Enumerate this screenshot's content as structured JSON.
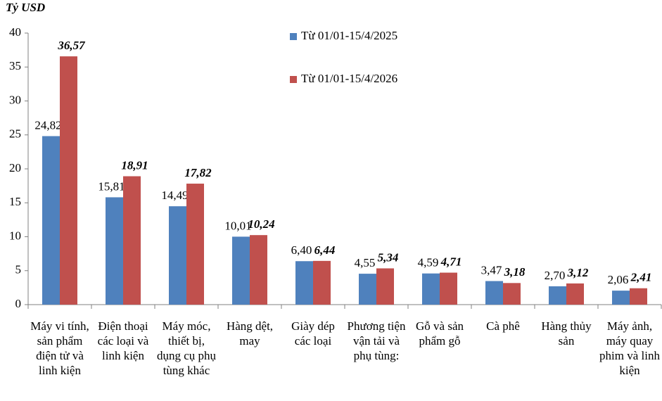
{
  "chart_data": {
    "type": "bar",
    "y_label": "Tỷ USD",
    "categories": [
      "Máy vi tính, sản phẩm điện tử và linh kiện",
      "Điện thoại các loại và linh kiện",
      "Máy móc, thiết bị, dụng cụ phụ tùng khác",
      "Hàng dệt, may",
      "Giày dép các loại",
      "Phương tiện vận tải và phụ tùng:",
      "Gỗ và sản phẩm gỗ",
      "Cà phê",
      "Hàng thủy sản",
      "Máy ảnh, máy quay phim và linh kiện"
    ],
    "series": [
      {
        "name": "Từ 01/01-15/4/2025",
        "color": "#4f81bd",
        "values": [
          24.82,
          15.81,
          14.49,
          10.01,
          6.4,
          4.55,
          4.59,
          3.47,
          2.7,
          2.06
        ],
        "value_labels": [
          "24,82",
          "15,81",
          "14,49",
          "10,01",
          "6,40",
          "4,55",
          "4,59",
          "3,47",
          "2,70",
          "2,06"
        ]
      },
      {
        "name": "Từ 01/01-15/4/2026",
        "color": "#c0504d",
        "values": [
          36.57,
          18.91,
          17.82,
          10.24,
          6.44,
          5.34,
          4.71,
          3.18,
          3.12,
          2.41
        ],
        "value_labels": [
          "36,57",
          "18,91",
          "17,82",
          "10,24",
          "6,44",
          "5,34",
          "4,71",
          "3,18",
          "3,12",
          "2,41"
        ]
      }
    ],
    "ylim": [
      0,
      40
    ],
    "yticks": [
      0,
      5,
      10,
      15,
      20,
      25,
      30,
      35,
      40
    ],
    "grid": false
  }
}
